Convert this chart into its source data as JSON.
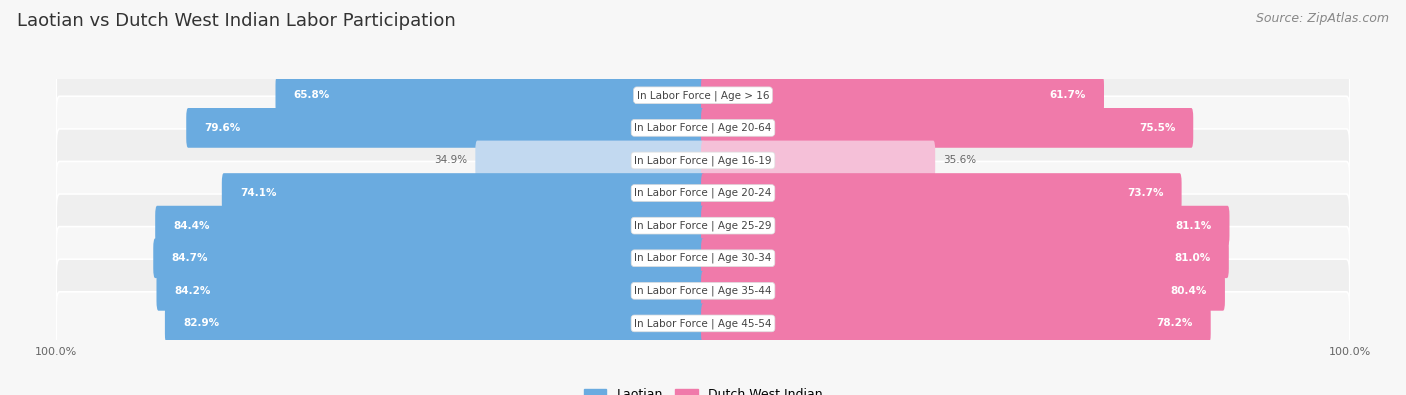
{
  "title": "Laotian vs Dutch West Indian Labor Participation",
  "source": "Source: ZipAtlas.com",
  "categories": [
    "In Labor Force | Age > 16",
    "In Labor Force | Age 20-64",
    "In Labor Force | Age 16-19",
    "In Labor Force | Age 20-24",
    "In Labor Force | Age 25-29",
    "In Labor Force | Age 30-34",
    "In Labor Force | Age 35-44",
    "In Labor Force | Age 45-54"
  ],
  "laotian_values": [
    65.8,
    79.6,
    34.9,
    74.1,
    84.4,
    84.7,
    84.2,
    82.9
  ],
  "dutch_values": [
    61.7,
    75.5,
    35.6,
    73.7,
    81.1,
    81.0,
    80.4,
    78.2
  ],
  "laotian_color_full": "#6aabe0",
  "laotian_color_light": "#c2d9f0",
  "dutch_color_full": "#f07aaa",
  "dutch_color_light": "#f5c0d8",
  "bar_height": 0.62,
  "background_color": "#f7f7f7",
  "row_bg_even": "#efefef",
  "row_bg_odd": "#f7f7f7",
  "label_color_dark": "#666666",
  "max_val": 100.0,
  "threshold": 50.0,
  "figsize": [
    14.06,
    3.95
  ],
  "dpi": 100,
  "title_fontsize": 13,
  "source_fontsize": 9,
  "label_fontsize": 7.5,
  "cat_fontsize": 7.5
}
